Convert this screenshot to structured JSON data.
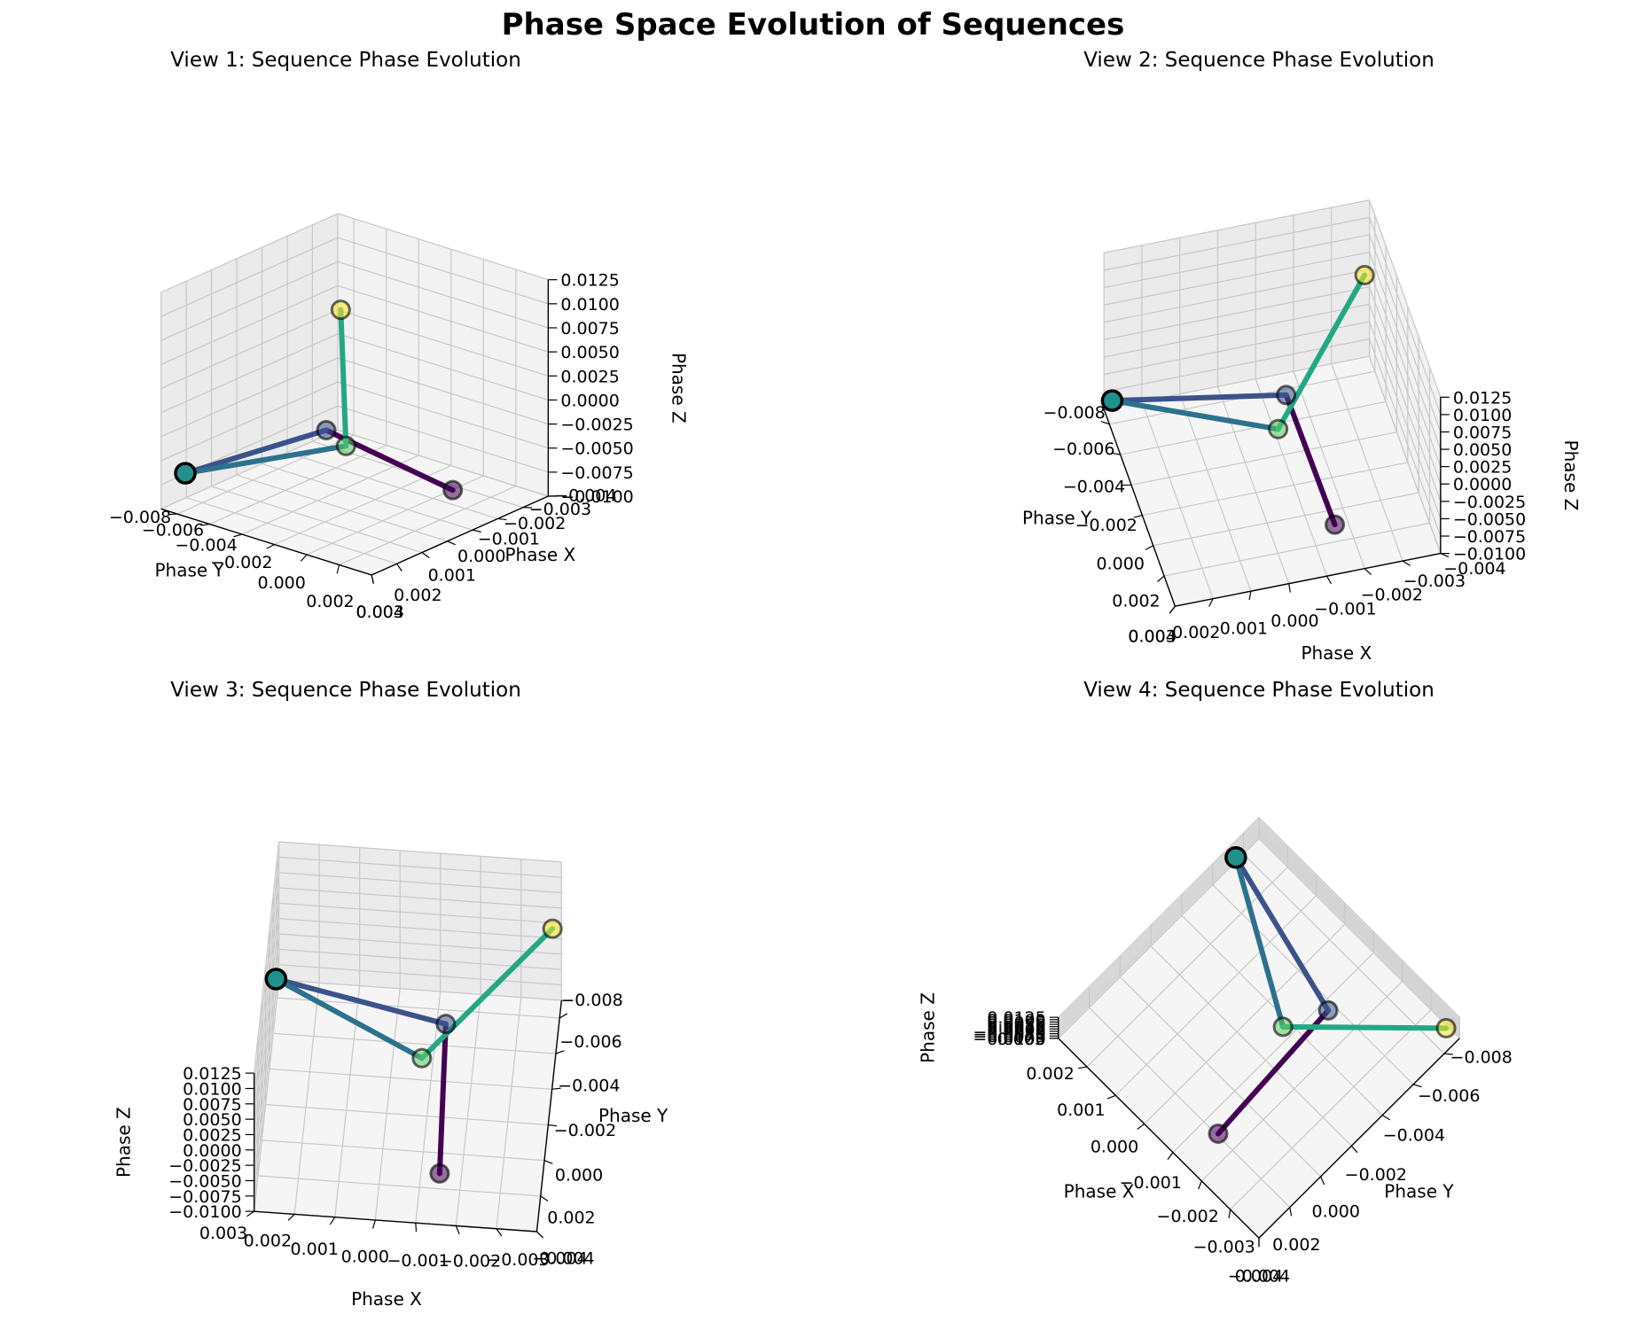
{
  "figure": {
    "title": "Phase Space Evolution of Sequences"
  },
  "chart_data": {
    "type": "line3d",
    "xlabel": "Phase X",
    "ylabel": "Phase Y",
    "zlabel": "Phase Z",
    "xlim": [
      -0.004,
      0.003
    ],
    "ylim": [
      -0.009,
      0.004
    ],
    "zlim": [
      -0.01,
      0.0125
    ],
    "x_ticks": [
      "−0.004",
      "−0.003",
      "−0.002",
      "−0.001",
      "0.000",
      "0.001",
      "0.002",
      "0.003"
    ],
    "y_ticks": [
      "−0.008",
      "−0.006",
      "−0.004",
      "−0.002",
      "0.000",
      "0.002",
      "0.004"
    ],
    "z_ticks": [
      "−0.0100",
      "−0.0075",
      "−0.0050",
      "−0.0025",
      "0.0000",
      "0.0025",
      "0.0050",
      "0.0075",
      "0.0100",
      "0.0125"
    ],
    "points": [
      {
        "x": -0.0015,
        "y": 0.002,
        "z": -0.0075,
        "color": "#440154"
      },
      {
        "x": -0.0013,
        "y": -0.0055,
        "z": -0.005,
        "color": "#3b528b"
      },
      {
        "x": 0.003,
        "y": -0.0075,
        "z": -0.0055,
        "color": "#21918c"
      },
      {
        "x": -0.0008,
        "y": -0.0035,
        "z": -0.005,
        "color": "#5ec962"
      },
      {
        "x": -0.0038,
        "y": -0.0085,
        "z": 0.003,
        "color": "#fde725"
      }
    ],
    "segment_colors": [
      "#440154",
      "#3b528b",
      "#2c728e",
      "#22a884"
    ],
    "views": [
      {
        "title": "View 1: Sequence Phase Evolution"
      },
      {
        "title": "View 2: Sequence Phase Evolution"
      },
      {
        "title": "View 3: Sequence Phase Evolution"
      },
      {
        "title": "View 4: Sequence Phase Evolution"
      }
    ]
  }
}
